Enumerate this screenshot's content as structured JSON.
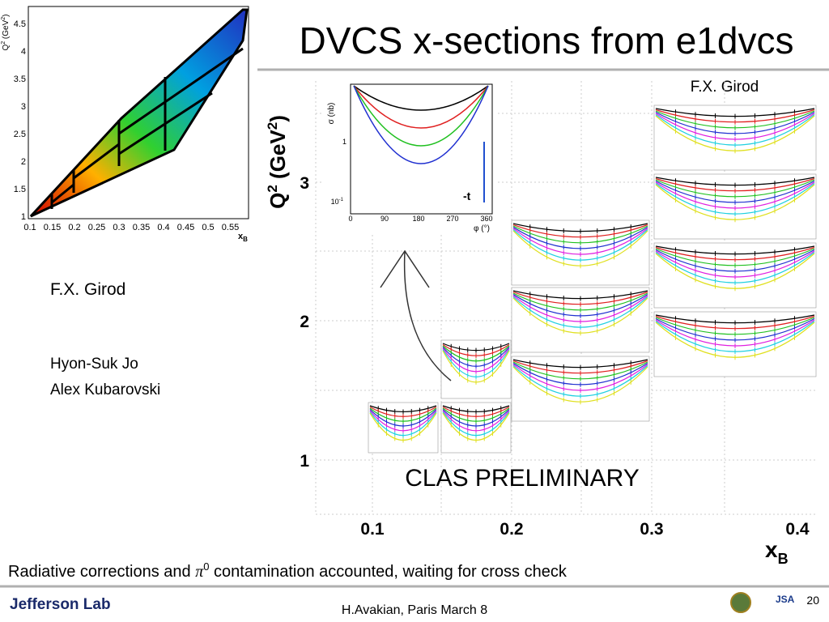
{
  "title": "DVCS x-sections from e1dvcs",
  "credit_top": "F.X. Girod",
  "credit_left": "F.X. Girod",
  "authors": [
    "Hyon-Suk Jo",
    "Alex Kubarovski"
  ],
  "preliminary": "CLAS PRELIMINARY",
  "footnote": [
    "Radiative corrections   and ",
    "π",
    "0",
    " contamination accounted, waiting for cross check"
  ],
  "footer": {
    "logo": "Jefferson Lab",
    "event": "H.Avakian, Paris March 8",
    "page": "20",
    "jsa": "JSA"
  },
  "kinematics_plot": {
    "ylabel": [
      "Q",
      "2",
      " (GeV",
      "2",
      ")"
    ],
    "xlabel": [
      "x",
      "B"
    ],
    "xticks": [
      "0.1",
      "0.15",
      "0.2",
      "0.25",
      "0.3",
      "0.35",
      "0.4",
      "0.45",
      "0.5",
      "0.55"
    ],
    "yticks": [
      "1",
      "1.5",
      "2",
      "2.5",
      "3",
      "3.5",
      "4",
      "4.5"
    ]
  },
  "main_plot": {
    "ylabel": [
      "Q",
      "2",
      " (GeV",
      "2",
      ")"
    ],
    "xlabel": [
      "x",
      "B"
    ],
    "xticks": [
      "0.1",
      "0.2",
      "0.3",
      "0.4"
    ],
    "yticks": [
      "1",
      "2",
      "3"
    ]
  },
  "inset": {
    "ylabel": "σ (nb)",
    "xlabel": "φ (°)",
    "label": "-t",
    "xticks": [
      "0",
      "90",
      "180",
      "270",
      "360"
    ],
    "yticks": [
      "1",
      "10",
      "-1"
    ]
  }
}
